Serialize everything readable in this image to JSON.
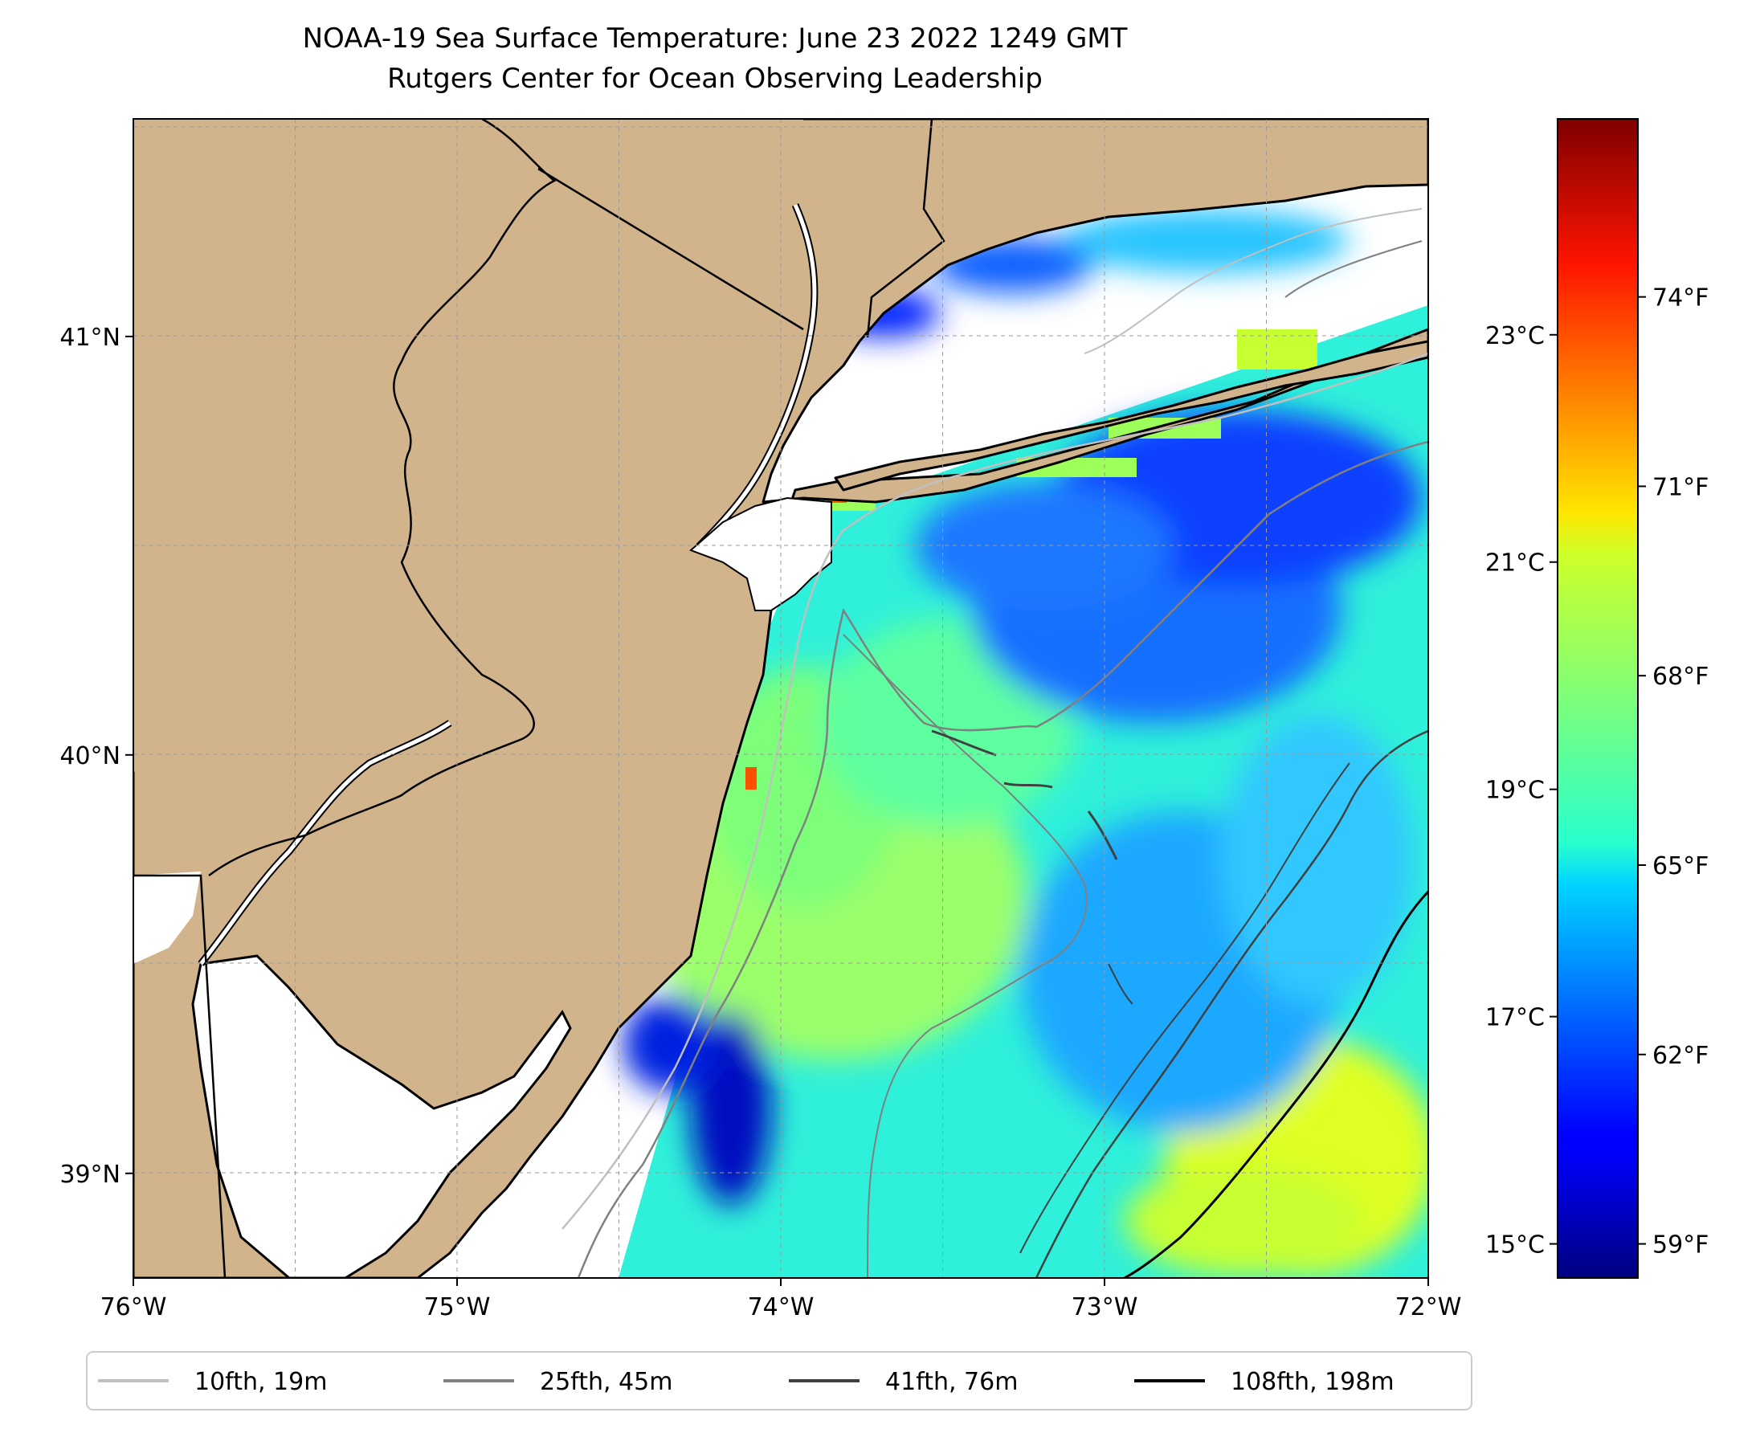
{
  "title": {
    "line1": "NOAA-19 Sea Surface Temperature: June 23 2022 1249 GMT",
    "line2": "Rutgers Center for Ocean Observing Leadership"
  },
  "map": {
    "lon_range": [
      -76,
      -72
    ],
    "lat_range": [
      38.75,
      41.52
    ],
    "lon_ticks": [
      {
        "value": -76,
        "label": "76°W"
      },
      {
        "value": -75,
        "label": "75°W"
      },
      {
        "value": -74,
        "label": "74°W"
      },
      {
        "value": -73,
        "label": "73°W"
      },
      {
        "value": -72,
        "label": "72°W"
      }
    ],
    "lat_ticks": [
      {
        "value": 39,
        "label": "39°N"
      },
      {
        "value": 40,
        "label": "40°N"
      },
      {
        "value": 41,
        "label": "41°N"
      }
    ],
    "grid": "dashed",
    "land_color": "#D2B48C"
  },
  "colorbar": {
    "colormap": "jet",
    "celsius_range": [
      14.7,
      24.9
    ],
    "celsius_ticks": [
      {
        "value": 15,
        "label": "15°C"
      },
      {
        "value": 17,
        "label": "17°C"
      },
      {
        "value": 19,
        "label": "19°C"
      },
      {
        "value": 21,
        "label": "21°C"
      },
      {
        "value": 23,
        "label": "23°C"
      }
    ],
    "fahrenheit_ticks": [
      {
        "value": 59,
        "label": "59°F"
      },
      {
        "value": 62,
        "label": "62°F"
      },
      {
        "value": 65,
        "label": "65°F"
      },
      {
        "value": 68,
        "label": "68°F"
      },
      {
        "value": 71,
        "label": "71°F"
      },
      {
        "value": 74,
        "label": "74°F"
      }
    ]
  },
  "legend": {
    "placement": "bottom",
    "items": [
      {
        "label": "10fth, 19m",
        "color": "#C0C0C0"
      },
      {
        "label": "25fth, 45m",
        "color": "#808080"
      },
      {
        "label": "41fth, 76m",
        "color": "#404040"
      },
      {
        "label": "108fth, 198m",
        "color": "#000000"
      }
    ]
  }
}
